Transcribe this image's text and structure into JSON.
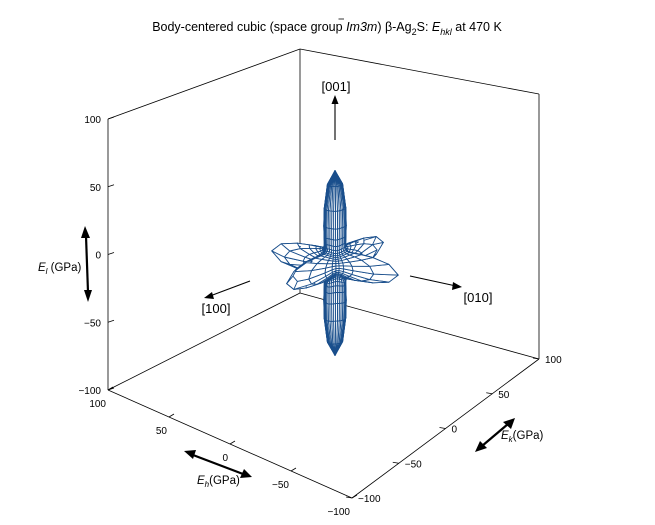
{
  "title": {
    "prefix": "Body-centered cubic (space group ",
    "group": "Im3m",
    "middle": ") β-Ag",
    "sub2": "2",
    "mid2": "S: ",
    "e": "E",
    "esub": "hkl",
    "suffix": "  at 470 K"
  },
  "axes": {
    "z_label": "E",
    "z_label_sub": "l",
    "z_label_unit": " (GPa)",
    "h_label": "E",
    "h_label_sub": "h",
    "h_label_unit": "(GPa)",
    "k_label": "E",
    "k_label_sub": "k",
    "k_label_unit": "(GPa)",
    "z_ticks": [
      "100",
      "50",
      "0",
      "−50",
      "−100"
    ],
    "h_ticks": [
      "100",
      "50",
      "0",
      "−50",
      "−100"
    ],
    "k_ticks": [
      "100",
      "50",
      "0",
      "−50",
      "−100"
    ]
  },
  "directions": {
    "d001": "[001]",
    "d100": "[100]",
    "d010": "[010]"
  },
  "chart_data": {
    "type": "surface3d",
    "title": "Body-centered cubic (space group Im3m) β-Ag2S: Ehkl at 470 K",
    "xlabel": "Eh (GPa)",
    "ylabel": "Ek (GPa)",
    "zlabel": "El (GPa)",
    "xlim": [
      -100,
      100
    ],
    "ylim": [
      -100,
      100
    ],
    "zlim": [
      -100,
      100
    ],
    "directional_moduli_GPa": {
      "E100": 71,
      "E110": 24,
      "E111": 13
    },
    "mesh_color": "#1a4f8c"
  }
}
